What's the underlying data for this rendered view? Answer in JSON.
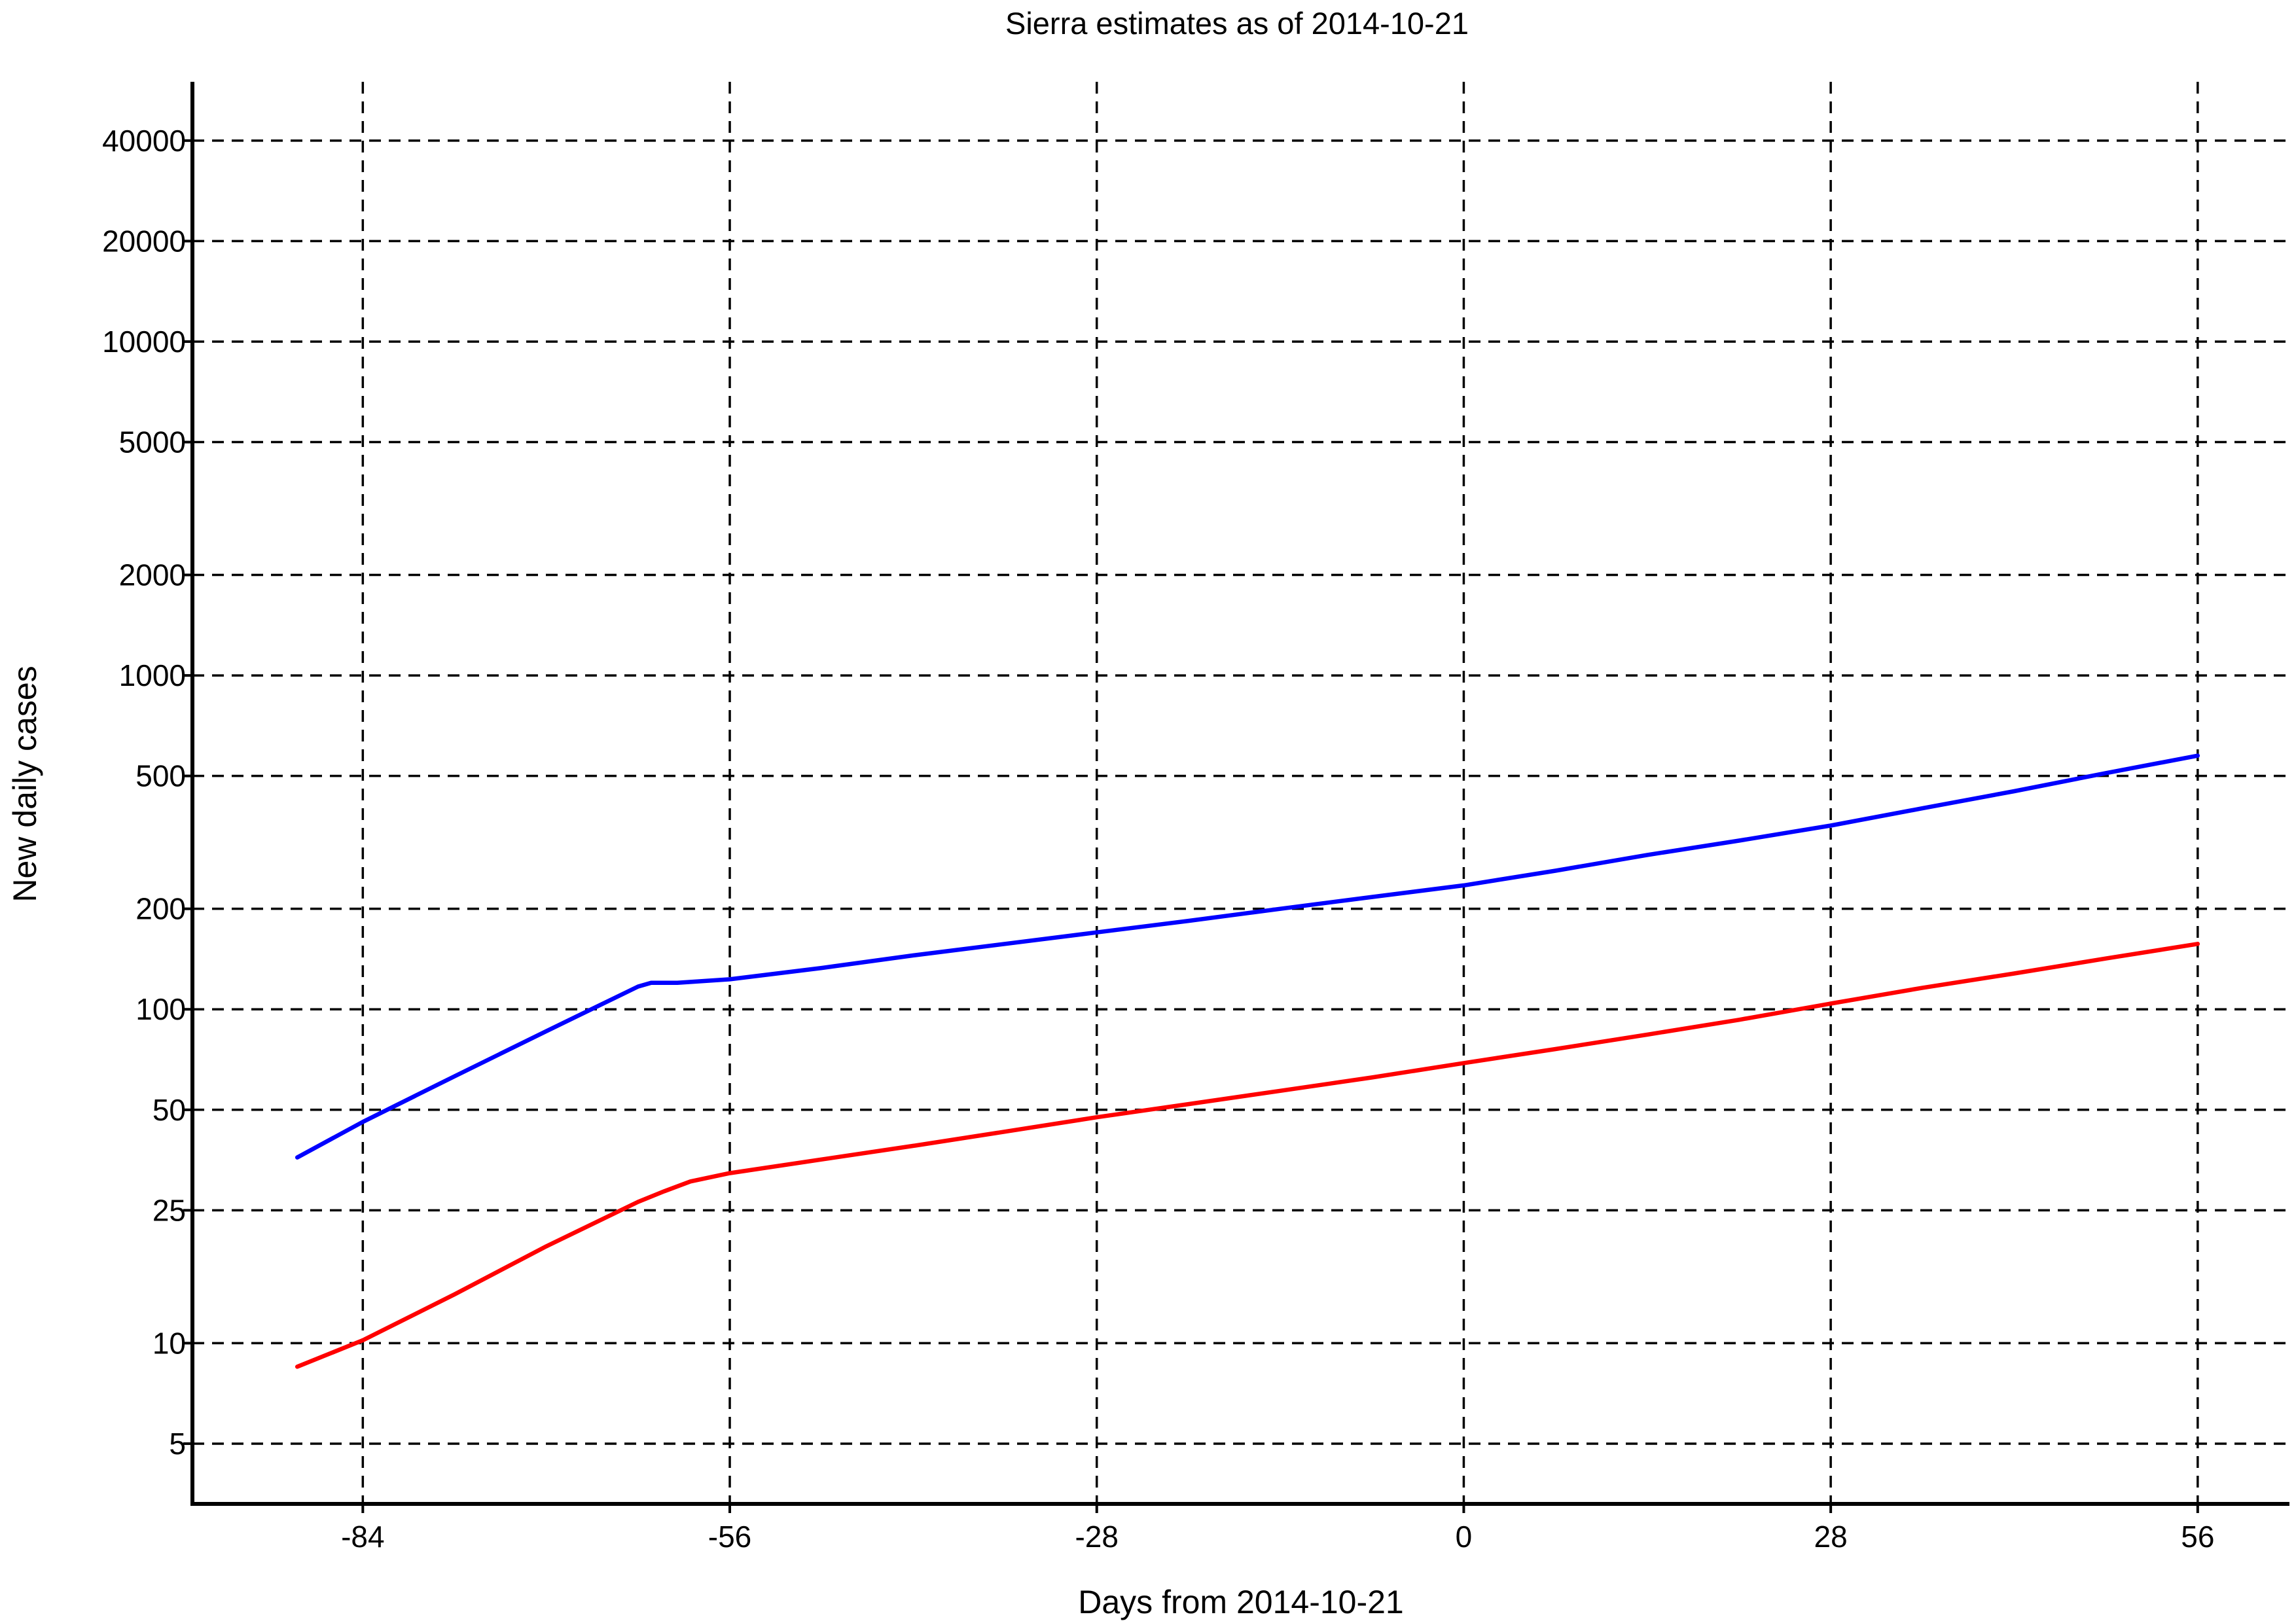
{
  "chart_data": {
    "type": "line",
    "title": "Sierra estimates as of 2014-10-21",
    "xlabel": "Days from 2014-10-21",
    "ylabel": "New daily cases",
    "xlim": [
      -97,
      63
    ],
    "ylim": [
      3.3,
      60000
    ],
    "yscale": "log",
    "grid": true,
    "x_ticks": [
      -84,
      -56,
      -28,
      0,
      28,
      56
    ],
    "x_tick_labels": [
      "-84",
      "-56",
      "-28",
      "0",
      "28",
      "56"
    ],
    "y_ticks": [
      5,
      10,
      25,
      50,
      100,
      200,
      500,
      1000,
      2000,
      5000,
      10000,
      20000,
      40000
    ],
    "y_tick_labels": [
      "5",
      "10",
      "25",
      "50",
      "100",
      "200",
      "500",
      "1000",
      "2000",
      "5000",
      "10000",
      "20000",
      "40000"
    ],
    "series": [
      {
        "color": "#0000ff",
        "x": [
          -89,
          -84,
          -77,
          -70,
          -63,
          -62,
          -60,
          -56,
          -49,
          -42,
          -35,
          -28,
          -21,
          -14,
          -7,
          0,
          7,
          14,
          21,
          28,
          35,
          42,
          49,
          56
        ],
        "values": [
          36,
          46,
          63,
          86,
          117,
          120,
          120,
          123,
          133,
          145,
          157,
          170,
          184,
          200,
          217,
          235,
          260,
          290,
          320,
          355,
          400,
          450,
          510,
          575
        ]
      },
      {
        "color": "#ff0000",
        "x": [
          -89,
          -84,
          -77,
          -70,
          -63,
          -61,
          -59,
          -56,
          -49,
          -42,
          -35,
          -28,
          -21,
          -14,
          -7,
          0,
          7,
          14,
          21,
          28,
          35,
          42,
          49,
          56
        ],
        "values": [
          8.5,
          10.2,
          14,
          19.5,
          26.5,
          28.5,
          30.5,
          32.3,
          35.5,
          39,
          43,
          47.5,
          52,
          57,
          62.5,
          69,
          76,
          84,
          93,
          104,
          116,
          128,
          142,
          157
        ]
      }
    ]
  }
}
